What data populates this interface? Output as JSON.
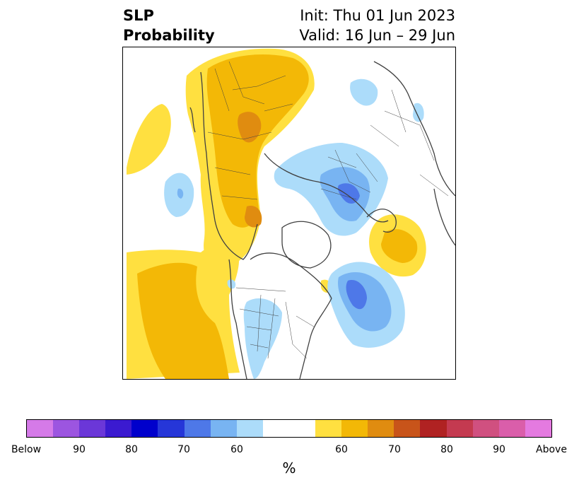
{
  "title": {
    "variable": "SLP",
    "product": "Probability",
    "init": "Init: Thu 01 Jun 2023",
    "valid": "Valid: 16 Jun – 29 Jun"
  },
  "colorbar": {
    "unit": "%",
    "colors": [
      "#d57ae8",
      "#9c55e0",
      "#6b37d8",
      "#3b1ad0",
      "#0000cc",
      "#2636d8",
      "#4e78e8",
      "#78b4f2",
      "#acdcfa",
      "#ffffff",
      "#ffffff",
      "#ffe040",
      "#f3b806",
      "#e08c10",
      "#c8541a",
      "#b02222",
      "#c43a50",
      "#d05080",
      "#da5eaa",
      "#e47ae0"
    ],
    "tick_labels": [
      "Below",
      "90",
      "80",
      "70",
      "60",
      "60",
      "70",
      "80",
      "90",
      "Above"
    ]
  },
  "map": {
    "above_color": "#f3b806",
    "above_light_color": "#ffe040",
    "above_dark_color": "#e08c10",
    "below_color": "#78b4f2",
    "below_light_color": "#acdcfa",
    "below_dark_color": "#4e78e8",
    "coastline_color": "#404040"
  }
}
